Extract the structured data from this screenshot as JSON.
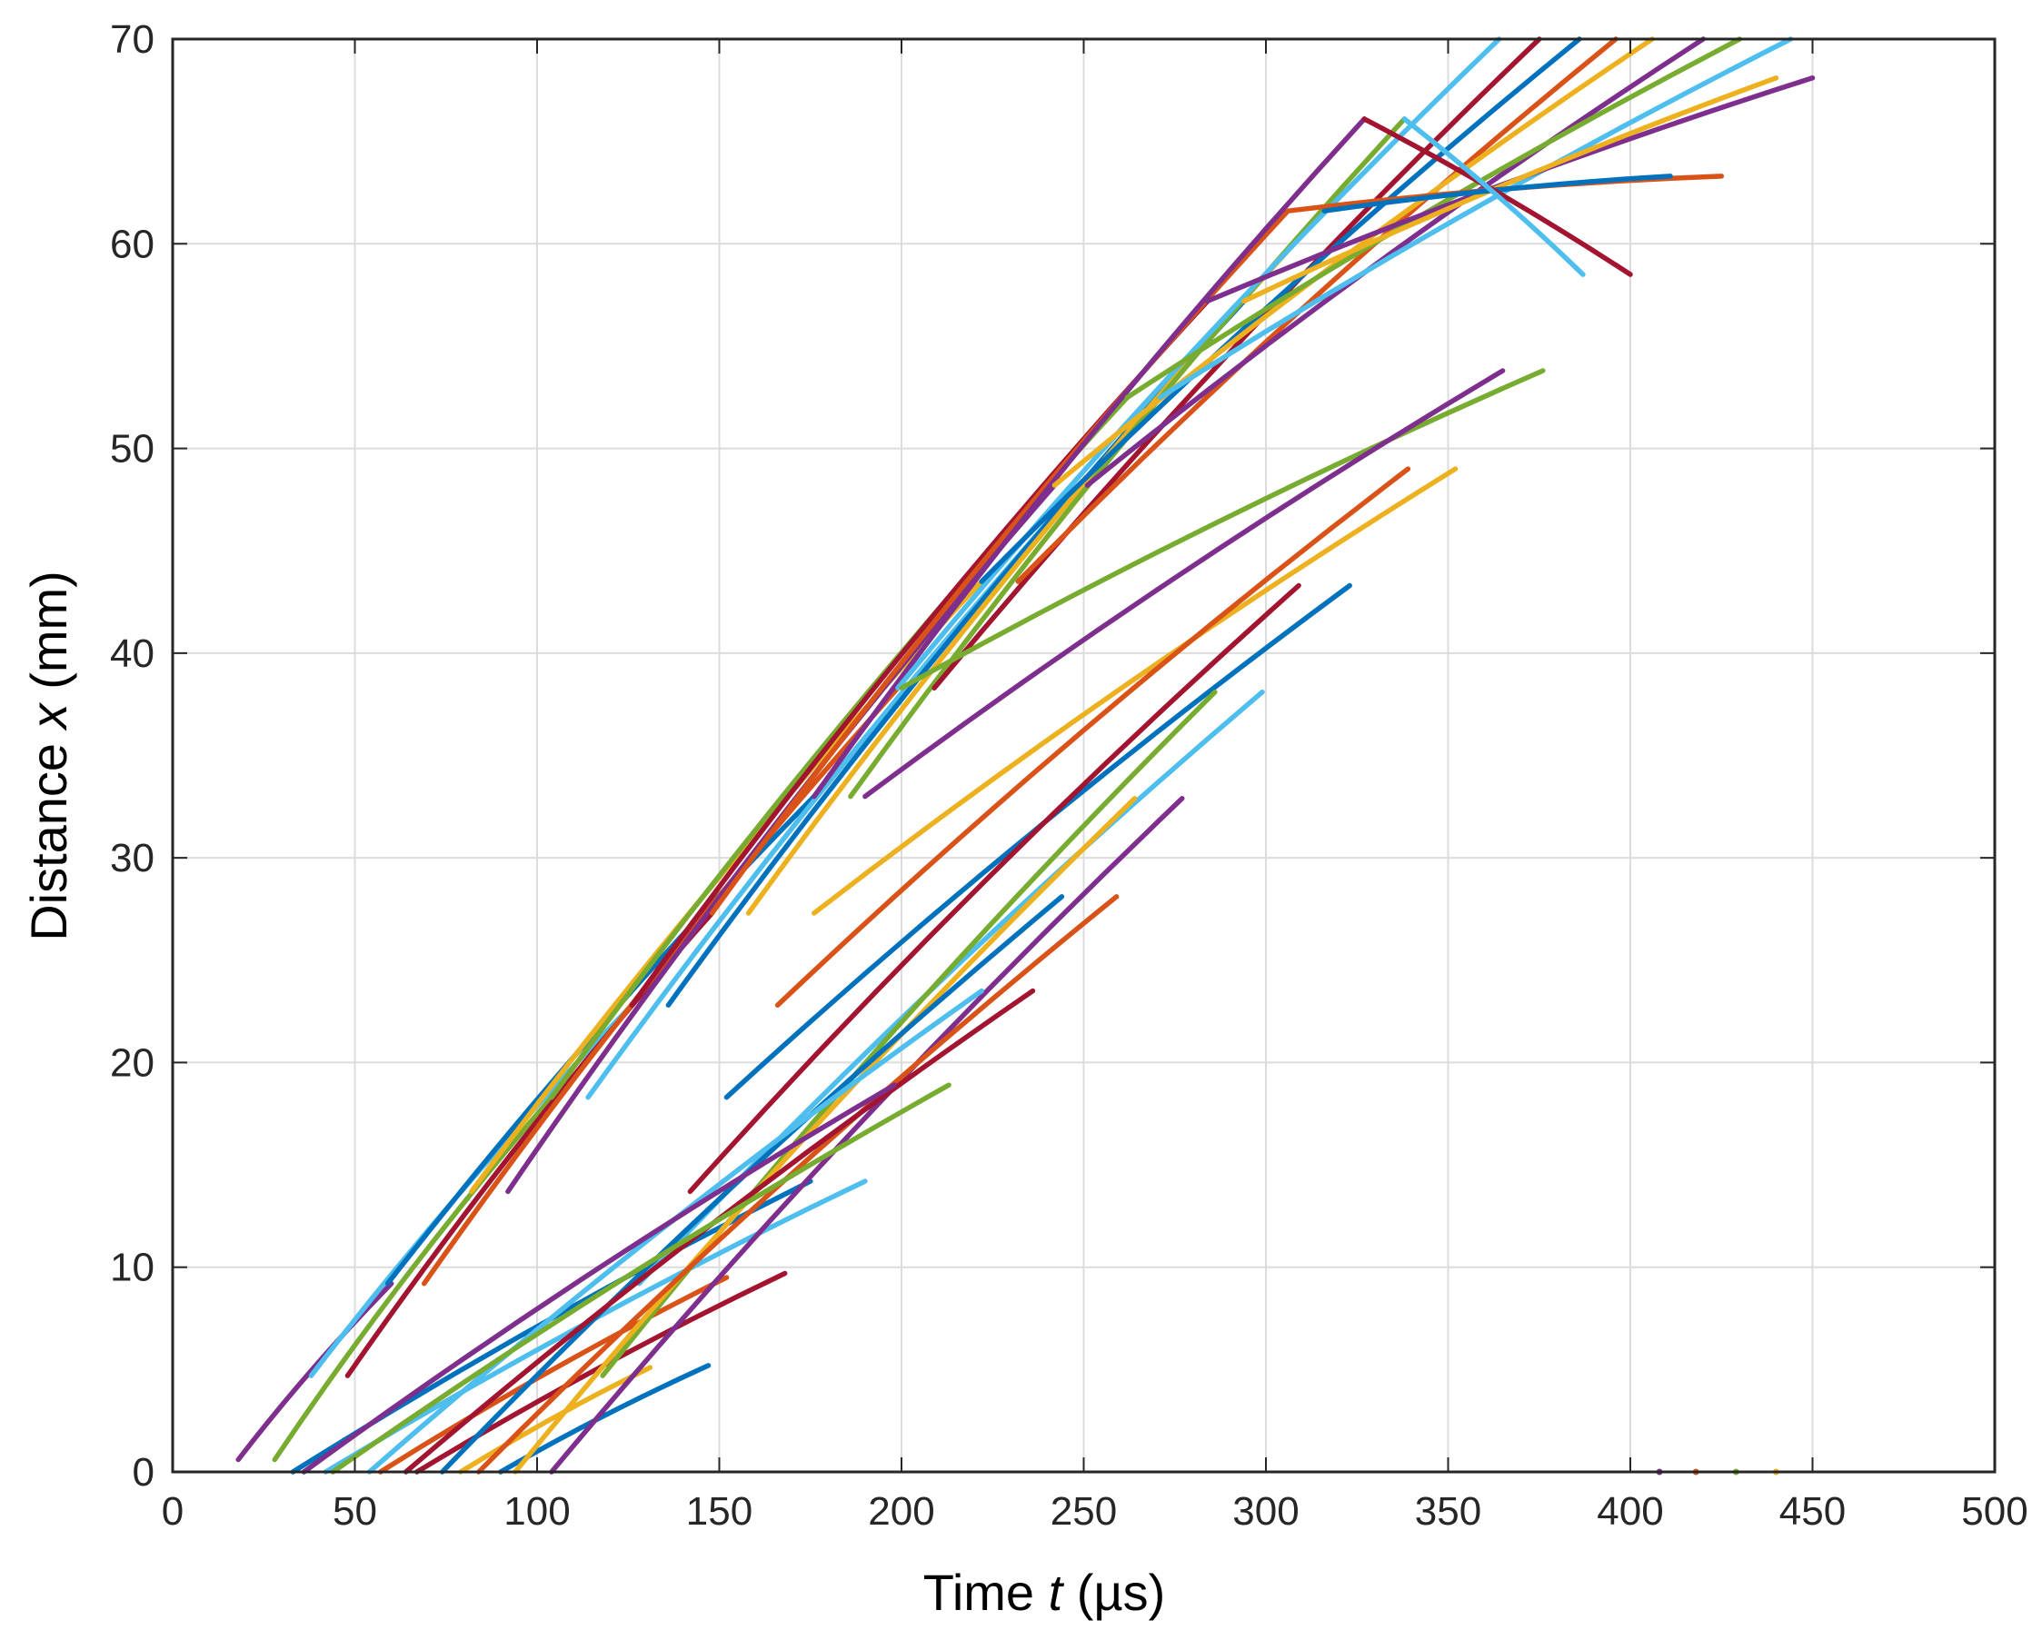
{
  "chart_data": {
    "type": "line",
    "title": "",
    "xlabel": {
      "prefix": "Time ",
      "var": "t",
      "suffix": " (µs)"
    },
    "ylabel": {
      "prefix": "Distance ",
      "var": "x",
      "suffix": " (mm)"
    },
    "xlim": [
      0,
      500
    ],
    "ylim": [
      0,
      70
    ],
    "xticks": [
      0,
      50,
      100,
      150,
      200,
      250,
      300,
      350,
      400,
      450,
      500
    ],
    "yticks": [
      0,
      10,
      20,
      30,
      40,
      50,
      60,
      70
    ],
    "grid": true,
    "legend": "none",
    "palette": [
      "#0072BD",
      "#D95319",
      "#EDB120",
      "#7E2F8E",
      "#77AC30",
      "#4DBEEE",
      "#A2142F"
    ],
    "series": [
      {
        "x": [
          18,
          60
        ],
        "y": [
          0.6,
          9.2
        ],
        "color": "#7E2F8E"
      },
      {
        "x": [
          28,
          104
        ],
        "y": [
          0.6,
          18.3
        ],
        "color": "#77AC30"
      },
      {
        "x": [
          33,
          175
        ],
        "y": [
          0,
          14.2
        ],
        "color": "#0072BD"
      },
      {
        "x": [
          38,
          126
        ],
        "y": [
          4.7,
          22.8
        ],
        "color": "#4DBEEE"
      },
      {
        "x": [
          42,
          190
        ],
        "y": [
          0,
          14.2
        ],
        "color": "#4DBEEE"
      },
      {
        "x": [
          48,
          148
        ],
        "y": [
          4.7,
          27.3
        ],
        "color": "#A2142F"
      },
      {
        "x": [
          57,
          152
        ],
        "y": [
          0,
          9.5
        ],
        "color": "#D95319"
      },
      {
        "x": [
          59,
          176
        ],
        "y": [
          9.2,
          33.0
        ],
        "color": "#0072BD"
      },
      {
        "x": [
          67,
          168
        ],
        "y": [
          0,
          9.7
        ],
        "color": "#A2142F"
      },
      {
        "x": [
          69,
          199
        ],
        "y": [
          9.2,
          38.3
        ],
        "color": "#D95319"
      },
      {
        "x": [
          79,
          131
        ],
        "y": [
          0,
          5.1
        ],
        "color": "#EDB120"
      },
      {
        "x": [
          82,
          222
        ],
        "y": [
          13.7,
          43.5
        ],
        "color": "#EDB120"
      },
      {
        "x": [
          90,
          147
        ],
        "y": [
          0,
          5.2
        ],
        "color": "#0072BD"
      },
      {
        "x": [
          92,
          242
        ],
        "y": [
          13.7,
          48.2
        ],
        "color": "#7E2F8E"
      },
      {
        "x": [
          104,
          262
        ],
        "y": [
          18.3,
          52.5
        ],
        "color": "#77AC30"
      },
      {
        "x": [
          114,
          271
        ],
        "y": [
          18.3,
          52.5
        ],
        "color": "#4DBEEE"
      },
      {
        "x": [
          126,
          284
        ],
        "y": [
          22.8,
          57.2
        ],
        "color": "#A2142F"
      },
      {
        "x": [
          136,
          294
        ],
        "y": [
          22.8,
          57.2
        ],
        "color": "#0072BD"
      },
      {
        "x": [
          148,
          306
        ],
        "y": [
          27.3,
          61.6
        ],
        "color": "#D95319"
      },
      {
        "x": [
          158,
          316
        ],
        "y": [
          27.3,
          61.6
        ],
        "color": "#EDB120"
      },
      {
        "x": [
          176,
          327
        ],
        "y": [
          33.0,
          66.1
        ],
        "color": "#7E2F8E"
      },
      {
        "x": [
          186,
          338
        ],
        "y": [
          33.0,
          66.1
        ],
        "color": "#77AC30"
      },
      {
        "x": [
          199,
          364
        ],
        "y": [
          38.3,
          70
        ],
        "color": "#4DBEEE"
      },
      {
        "x": [
          209,
          375
        ],
        "y": [
          38.3,
          70
        ],
        "color": "#A2142F"
      },
      {
        "x": [
          222,
          386
        ],
        "y": [
          43.5,
          70
        ],
        "color": "#0072BD"
      },
      {
        "x": [
          232,
          396
        ],
        "y": [
          43.5,
          70
        ],
        "color": "#D95319"
      },
      {
        "x": [
          242,
          406
        ],
        "y": [
          48.2,
          70
        ],
        "color": "#EDB120"
      },
      {
        "x": [
          251,
          420
        ],
        "y": [
          48.2,
          70
        ],
        "color": "#7E2F8E"
      },
      {
        "x": [
          262,
          430
        ],
        "y": [
          52.5,
          70
        ],
        "color": "#77AC30"
      },
      {
        "x": [
          271,
          444
        ],
        "y": [
          52.5,
          70
        ],
        "color": "#4DBEEE"
      },
      {
        "x": [
          284,
          450
        ],
        "y": [
          57.2,
          68.1
        ],
        "color": "#7E2F8E"
      },
      {
        "x": [
          294,
          440
        ],
        "y": [
          57.2,
          68.1
        ],
        "color": "#EDB120"
      },
      {
        "x": [
          306,
          425
        ],
        "y": [
          61.6,
          63.3
        ],
        "color": "#D95319"
      },
      {
        "x": [
          316,
          411
        ],
        "y": [
          61.6,
          63.3
        ],
        "color": "#0072BD"
      },
      {
        "x": [
          327,
          400
        ],
        "y": [
          66.1,
          58.5
        ],
        "color": "#A2142F"
      },
      {
        "x": [
          338,
          387
        ],
        "y": [
          66.1,
          58.5
        ],
        "color": "#4DBEEE"
      },
      {
        "x": [
          200,
          376
        ],
        "y": [
          38.3,
          53.8
        ],
        "color": "#77AC30"
      },
      {
        "x": [
          190,
          365
        ],
        "y": [
          33.0,
          53.8
        ],
        "color": "#7E2F8E"
      },
      {
        "x": [
          176,
          352
        ],
        "y": [
          27.3,
          49.0
        ],
        "color": "#EDB120"
      },
      {
        "x": [
          166,
          339
        ],
        "y": [
          22.8,
          49.0
        ],
        "color": "#D95319"
      },
      {
        "x": [
          152,
          323
        ],
        "y": [
          18.3,
          43.3
        ],
        "color": "#0072BD"
      },
      {
        "x": [
          142,
          309
        ],
        "y": [
          13.7,
          43.3
        ],
        "color": "#A2142F"
      },
      {
        "x": [
          128,
          299
        ],
        "y": [
          9.2,
          38.1
        ],
        "color": "#4DBEEE"
      },
      {
        "x": [
          118,
          286
        ],
        "y": [
          4.7,
          38.1
        ],
        "color": "#77AC30"
      },
      {
        "x": [
          104,
          277
        ],
        "y": [
          0,
          32.9
        ],
        "color": "#7E2F8E"
      },
      {
        "x": [
          94,
          264
        ],
        "y": [
          0,
          32.9
        ],
        "color": "#EDB120"
      },
      {
        "x": [
          84,
          259
        ],
        "y": [
          0,
          28.1
        ],
        "color": "#D95319"
      },
      {
        "x": [
          74,
          244
        ],
        "y": [
          0,
          28.1
        ],
        "color": "#0072BD"
      },
      {
        "x": [
          64,
          236
        ],
        "y": [
          0,
          23.5
        ],
        "color": "#A2142F"
      },
      {
        "x": [
          54,
          222
        ],
        "y": [
          0,
          23.5
        ],
        "color": "#4DBEEE"
      },
      {
        "x": [
          44,
          213
        ],
        "y": [
          0,
          18.9
        ],
        "color": "#77AC30"
      },
      {
        "x": [
          36,
          198
        ],
        "y": [
          0,
          18.9
        ],
        "color": "#7E2F8E"
      }
    ],
    "points": [
      {
        "x": 408,
        "y": 0,
        "color": "#7E2F8E"
      },
      {
        "x": 418,
        "y": 0,
        "color": "#D95319"
      },
      {
        "x": 429,
        "y": 0,
        "color": "#77AC30"
      },
      {
        "x": 440,
        "y": 0,
        "color": "#EDB120"
      }
    ]
  }
}
